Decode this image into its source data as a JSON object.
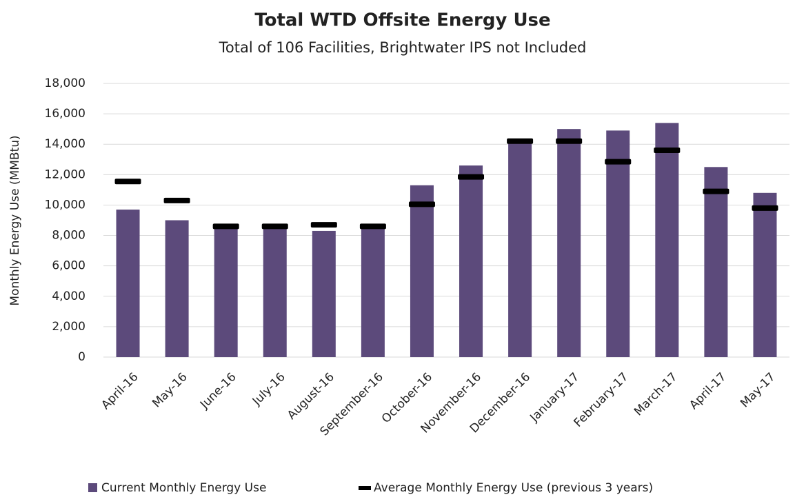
{
  "chart_data": {
    "type": "bar",
    "title": "Total WTD Offsite Energy Use",
    "subtitle": "Total of 106 Facilities, Brightwater IPS not Included",
    "y_label": "Monthly Energy Use (MMBtu)",
    "categories": [
      "April-16",
      "May-16",
      "June-16",
      "July-16",
      "August-16",
      "September-16",
      "October-16",
      "November-16",
      "December-16",
      "January-17",
      "February-17",
      "March-17",
      "April-17",
      "May-17"
    ],
    "series": [
      {
        "name": "Current Monthly Energy Use",
        "color": "#5c4a7b",
        "mark": "bar",
        "values": [
          9700,
          9000,
          8500,
          8500,
          8300,
          8500,
          11300,
          12600,
          14200,
          15000,
          14900,
          15400,
          12500,
          10800
        ]
      },
      {
        "name": "Average Monthly Energy Use (previous 3 years)",
        "color": "#000000",
        "mark": "dash",
        "values": [
          11550,
          10300,
          8600,
          8600,
          8700,
          8600,
          10050,
          11850,
          14200,
          14200,
          12850,
          13600,
          10900,
          9800
        ]
      }
    ],
    "ylim": [
      0,
      18000
    ],
    "yticks": [
      0,
      {
        "value": 2000,
        "label": "2,000"
      },
      {
        "value": 4000,
        "label": "4,000"
      },
      {
        "value": 6000,
        "label": "6,000"
      },
      {
        "value": 8000,
        "label": "8,000"
      },
      {
        "value": 10000,
        "label": "10,000"
      },
      {
        "value": 12000,
        "label": "12,000"
      },
      {
        "value": 14000,
        "label": "14,000"
      },
      {
        "value": 16000,
        "label": "16,000"
      },
      {
        "value": 18000,
        "label": "18,000"
      }
    ],
    "grid": true,
    "legend": "bottom"
  }
}
